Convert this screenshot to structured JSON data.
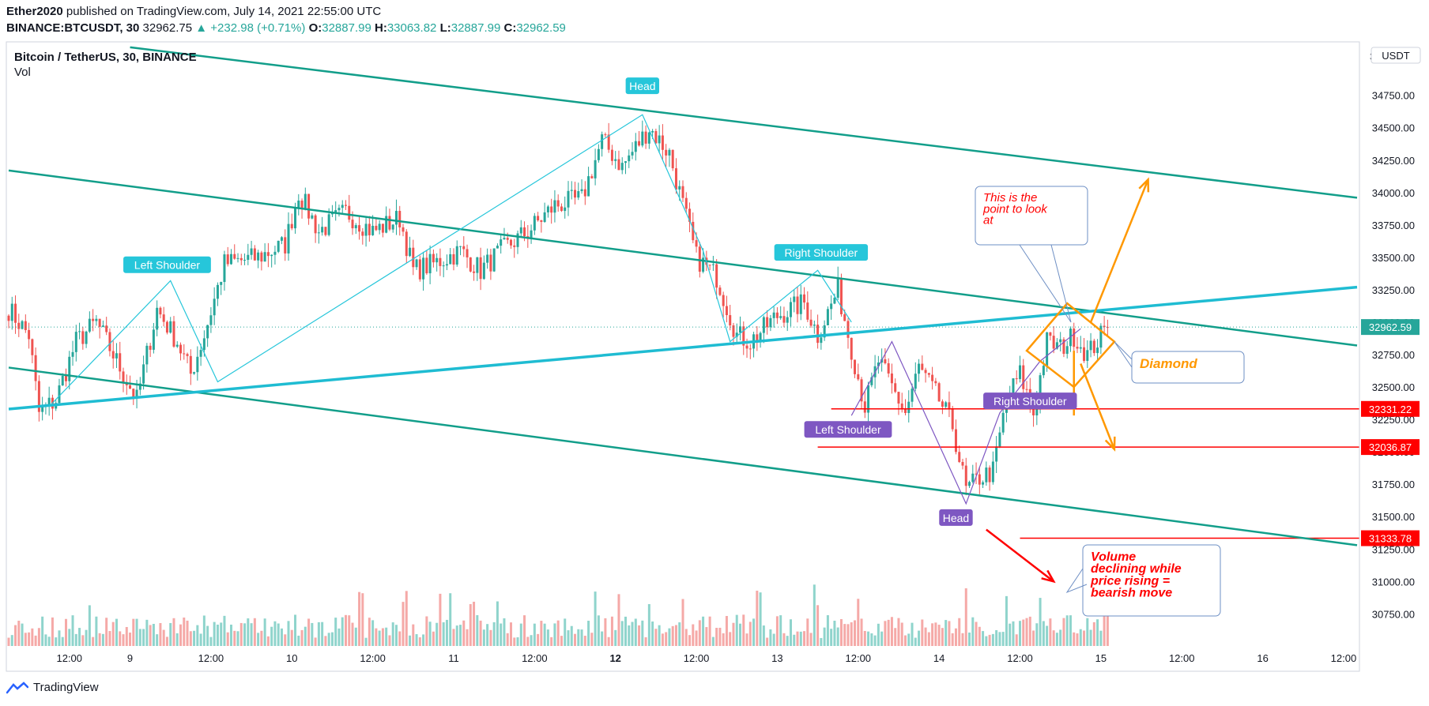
{
  "header": {
    "author": "Ether2020",
    "published": "published on TradingView.com, July 14, 2021 22:55:00 UTC",
    "symbol": "BINANCE:BTCUSDT, 30",
    "last": "32962.75",
    "change": "▲ +232.98 (+0.71%)",
    "o_label": "O:",
    "o": "32887.99",
    "h_label": "H:",
    "h": "33063.82",
    "l_label": "L:",
    "l": "32887.99",
    "c_label": "C:",
    "c": "32962.59"
  },
  "legend": {
    "title": "Bitcoin / TetherUS, 30, BINANCE",
    "vol": "Vol"
  },
  "currency_button": "USDT",
  "footer": {
    "brand": "TradingView",
    "logo_icon": "tradingview-logo-icon"
  },
  "colors": {
    "up": "#26a69a",
    "down": "#ef5350",
    "channel": "#129e8a",
    "wedge": "#1fbcd2",
    "pattern_cyan": "#26c6da",
    "pattern_purple": "#7e57c2",
    "diamond": "#ff9800",
    "level": "#ff0000"
  },
  "chart_data": {
    "type": "candlestick",
    "timeframe": "30",
    "y_axis": {
      "min": 30600,
      "max": 35150,
      "ticks": [
        30750,
        31000,
        31250,
        31500,
        31750,
        32000,
        32250,
        32500,
        32750,
        33000,
        33250,
        33500,
        33750,
        34000,
        34250,
        34500,
        34750
      ],
      "top_label": "3"
    },
    "x_axis": {
      "ticks": [
        {
          "label": "12:00",
          "slot": 18,
          "bold": false
        },
        {
          "label": "9",
          "slot": 36,
          "bold": false
        },
        {
          "label": "12:00",
          "slot": 60,
          "bold": false
        },
        {
          "label": "10",
          "slot": 84,
          "bold": false
        },
        {
          "label": "12:00",
          "slot": 108,
          "bold": false
        },
        {
          "label": "11",
          "slot": 132,
          "bold": false
        },
        {
          "label": "12:00",
          "slot": 156,
          "bold": false
        },
        {
          "label": "12",
          "slot": 180,
          "bold": true
        },
        {
          "label": "12:00",
          "slot": 204,
          "bold": false
        },
        {
          "label": "13",
          "slot": 228,
          "bold": false
        },
        {
          "label": "12:00",
          "slot": 252,
          "bold": false
        },
        {
          "label": "14",
          "slot": 276,
          "bold": false
        },
        {
          "label": "12:00",
          "slot": 300,
          "bold": false
        },
        {
          "label": "15",
          "slot": 324,
          "bold": false
        },
        {
          "label": "12:00",
          "slot": 348,
          "bold": false
        },
        {
          "label": "16",
          "slot": 372,
          "bold": false
        },
        {
          "label": "12:00",
          "slot": 396,
          "bold": false
        }
      ]
    },
    "price_anchors": [
      {
        "slot": 0,
        "price": 33100
      },
      {
        "slot": 6,
        "price": 32900
      },
      {
        "slot": 9,
        "price": 32300
      },
      {
        "slot": 14,
        "price": 32400
      },
      {
        "slot": 20,
        "price": 32850
      },
      {
        "slot": 26,
        "price": 33000
      },
      {
        "slot": 30,
        "price": 32800
      },
      {
        "slot": 38,
        "price": 32400
      },
      {
        "slot": 44,
        "price": 33100
      },
      {
        "slot": 50,
        "price": 32850
      },
      {
        "slot": 54,
        "price": 32600
      },
      {
        "slot": 58,
        "price": 32900
      },
      {
        "slot": 64,
        "price": 33450
      },
      {
        "slot": 74,
        "price": 33500
      },
      {
        "slot": 82,
        "price": 33600
      },
      {
        "slot": 86,
        "price": 34000
      },
      {
        "slot": 92,
        "price": 33700
      },
      {
        "slot": 100,
        "price": 33850
      },
      {
        "slot": 108,
        "price": 33700
      },
      {
        "slot": 116,
        "price": 33800
      },
      {
        "slot": 120,
        "price": 33400
      },
      {
        "slot": 126,
        "price": 33450
      },
      {
        "slot": 134,
        "price": 33550
      },
      {
        "slot": 140,
        "price": 33400
      },
      {
        "slot": 146,
        "price": 33550
      },
      {
        "slot": 154,
        "price": 33700
      },
      {
        "slot": 162,
        "price": 33900
      },
      {
        "slot": 170,
        "price": 33950
      },
      {
        "slot": 176,
        "price": 34400
      },
      {
        "slot": 182,
        "price": 34200
      },
      {
        "slot": 190,
        "price": 34500
      },
      {
        "slot": 196,
        "price": 34300
      },
      {
        "slot": 200,
        "price": 33900
      },
      {
        "slot": 204,
        "price": 33500
      },
      {
        "slot": 210,
        "price": 33350
      },
      {
        "slot": 216,
        "price": 32900
      },
      {
        "slot": 220,
        "price": 32850
      },
      {
        "slot": 228,
        "price": 33050
      },
      {
        "slot": 236,
        "price": 33150
      },
      {
        "slot": 240,
        "price": 32900
      },
      {
        "slot": 246,
        "price": 33250
      },
      {
        "slot": 250,
        "price": 32800
      },
      {
        "slot": 254,
        "price": 32350
      },
      {
        "slot": 258,
        "price": 32700
      },
      {
        "slot": 262,
        "price": 32500
      },
      {
        "slot": 266,
        "price": 32300
      },
      {
        "slot": 270,
        "price": 32650
      },
      {
        "slot": 276,
        "price": 32400
      },
      {
        "slot": 280,
        "price": 32200
      },
      {
        "slot": 284,
        "price": 31700
      },
      {
        "slot": 288,
        "price": 31800
      },
      {
        "slot": 292,
        "price": 31850
      },
      {
        "slot": 296,
        "price": 32400
      },
      {
        "slot": 300,
        "price": 32600
      },
      {
        "slot": 304,
        "price": 32300
      },
      {
        "slot": 308,
        "price": 32850
      },
      {
        "slot": 312,
        "price": 32800
      },
      {
        "slot": 316,
        "price": 32900
      },
      {
        "slot": 320,
        "price": 32750
      },
      {
        "slot": 326,
        "price": 32962
      }
    ],
    "current_price": 32962.59,
    "price_labels": [
      {
        "value": "32962.59",
        "price": 32962.59,
        "color": "#26a69a"
      },
      {
        "value": "32331.22",
        "price": 32331.22,
        "color": "#ff0000"
      },
      {
        "value": "32036.87",
        "price": 32036.87,
        "color": "#ff0000"
      },
      {
        "value": "31333.78",
        "price": 31333.78,
        "color": "#ff0000"
      }
    ],
    "horizontal_levels": [
      {
        "price": 32331.22,
        "from_slot": 244
      },
      {
        "price": 32036.87,
        "from_slot": 240
      },
      {
        "price": 31333.78,
        "from_slot": 300
      }
    ],
    "trendlines": [
      {
        "name": "channel-upper",
        "from": {
          "slot": 36,
          "price": 35120
        },
        "to": {
          "slot": 400,
          "price": 33960
        },
        "color": "#129e8a",
        "width": 2.5
      },
      {
        "name": "channel-middle",
        "from": {
          "slot": 0,
          "price": 34170
        },
        "to": {
          "slot": 400,
          "price": 32820
        },
        "color": "#129e8a",
        "width": 2.5
      },
      {
        "name": "channel-lower",
        "from": {
          "slot": 0,
          "price": 32650
        },
        "to": {
          "slot": 400,
          "price": 31280
        },
        "color": "#129e8a",
        "width": 2.5
      },
      {
        "name": "rising-support",
        "from": {
          "slot": 0,
          "price": 32330
        },
        "to": {
          "slot": 400,
          "price": 33270
        },
        "color": "#1fbcd2",
        "width": 3.5
      }
    ],
    "pattern_lines": [
      {
        "name": "hs1",
        "color": "#26c6da",
        "points": [
          {
            "slot": 12,
            "price": 32350
          },
          {
            "slot": 48,
            "price": 33320
          },
          {
            "slot": 62,
            "price": 32540
          },
          {
            "slot": 188,
            "price": 34600
          },
          {
            "slot": 206,
            "price": 33550
          },
          {
            "slot": 214,
            "price": 32850
          },
          {
            "slot": 240,
            "price": 33400
          },
          {
            "slot": 250,
            "price": 33000
          }
        ]
      },
      {
        "name": "hs2",
        "color": "#7e57c2",
        "points": [
          {
            "slot": 250,
            "price": 32280
          },
          {
            "slot": 262,
            "price": 32850
          },
          {
            "slot": 284,
            "price": 31600
          },
          {
            "slot": 294,
            "price": 32300
          },
          {
            "slot": 306,
            "price": 32700
          },
          {
            "slot": 318,
            "price": 32950
          }
        ]
      }
    ],
    "pattern_labels": [
      {
        "text": "Left Shoulder",
        "slot": 47,
        "price": 33440,
        "color": "#26c6da"
      },
      {
        "text": "Head",
        "slot": 188,
        "price": 34820,
        "color": "#26c6da"
      },
      {
        "text": "Right Shoulder",
        "slot": 241,
        "price": 33535,
        "color": "#26c6da"
      },
      {
        "text": "Left Shoulder",
        "slot": 249,
        "price": 32170,
        "color": "#7e57c2"
      },
      {
        "text": "Head",
        "slot": 281,
        "price": 31490,
        "color": "#7e57c2"
      },
      {
        "text": "Right Shoulder",
        "slot": 303,
        "price": 32390,
        "color": "#7e57c2"
      }
    ],
    "diamond": {
      "points": [
        {
          "slot": 302,
          "price": 32780
        },
        {
          "slot": 314,
          "price": 33145
        },
        {
          "slot": 328,
          "price": 32850
        },
        {
          "slot": 316,
          "price": 32500
        }
      ]
    },
    "arrows": [
      {
        "name": "target-up",
        "from": {
          "slot": 321,
          "price": 33000
        },
        "to": {
          "slot": 338,
          "price": 34100
        },
        "color": "#ff9800"
      },
      {
        "name": "target-down",
        "from": {
          "slot": 318,
          "price": 32680
        },
        "to": {
          "slot": 328,
          "price": 32020
        },
        "color": "#ff9800"
      },
      {
        "name": "volume-arrow",
        "from": {
          "slot": 290,
          "price": 31400
        },
        "to": {
          "slot": 310,
          "price": 31000
        },
        "color": "#ff0000"
      }
    ],
    "callouts": [
      {
        "text": "This is the point to look at",
        "color": "#ff0000",
        "style": "italic"
      },
      {
        "text": "Diamond",
        "color": "#ff9800",
        "style": "bold italic"
      },
      {
        "text": "Volume declining while price rising = bearish move",
        "color": "#ff0000",
        "style": "bold italic"
      }
    ]
  }
}
